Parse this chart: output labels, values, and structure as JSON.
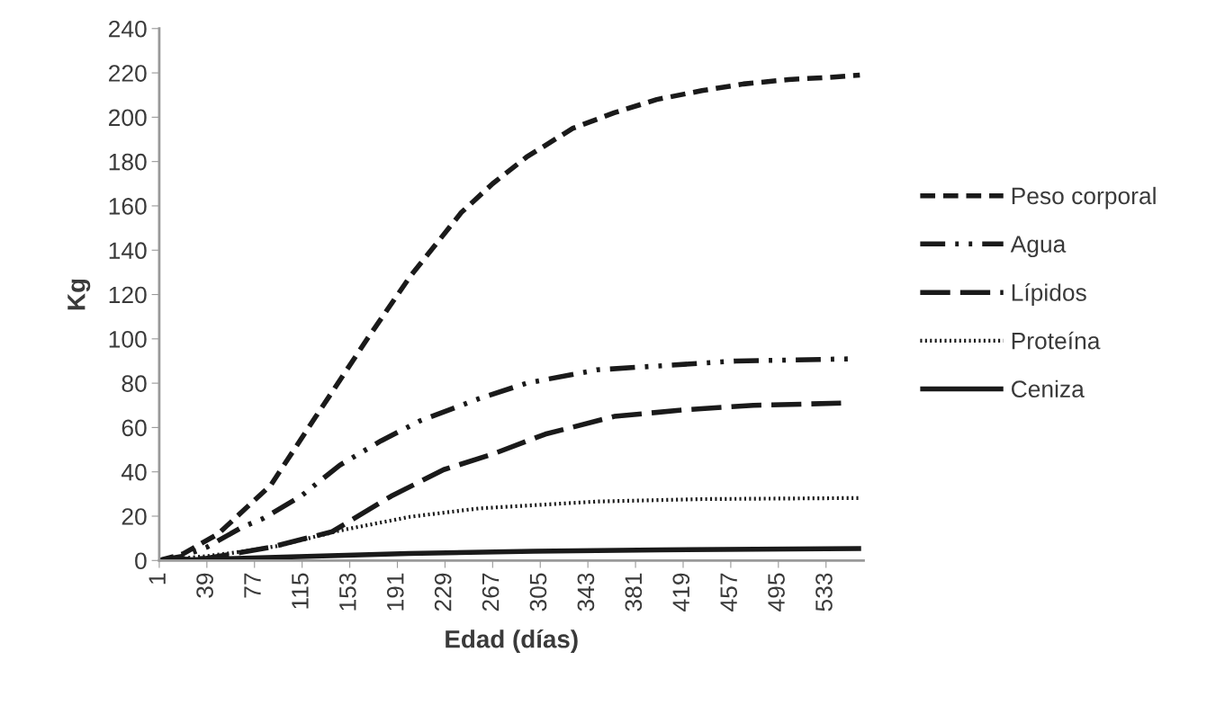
{
  "chart_data": {
    "type": "line",
    "xlabel": "Edad (días)",
    "ylabel": "Kg",
    "xlim": [
      1,
      563
    ],
    "xticks": [
      1,
      39,
      77,
      115,
      153,
      191,
      229,
      267,
      305,
      343,
      381,
      419,
      457,
      495,
      533
    ],
    "ylim": [
      0,
      240
    ],
    "yticks": [
      0,
      20,
      40,
      60,
      80,
      100,
      120,
      140,
      160,
      180,
      200,
      220,
      240
    ],
    "grid": false,
    "legend": "right",
    "marker": "none",
    "series": [
      {
        "name": "Peso corporal",
        "color": "#1a1a1a",
        "line_style": "dashed",
        "x": [
          1,
          20,
          48,
          90,
          126,
          167,
          201,
          242,
          267,
          294,
          331,
          364,
          398,
          434,
          467,
          503,
          536,
          560
        ],
        "values": [
          0,
          3,
          12,
          34,
          65,
          100,
          128,
          157,
          170,
          182,
          195,
          202,
          208,
          212,
          215,
          217,
          218,
          219
        ]
      },
      {
        "name": "Agua",
        "color": "#1a1a1a",
        "line_style": "dashdot",
        "x": [
          1,
          20,
          39,
          67,
          84,
          114,
          145,
          178,
          209,
          256,
          294,
          350,
          405,
          461,
          554
        ],
        "values": [
          0,
          2,
          6,
          15,
          19,
          29,
          43,
          54,
          63,
          73,
          80,
          86,
          88,
          90,
          91
        ]
      },
      {
        "name": "Lípidos",
        "color": "#1a1a1a",
        "line_style": "longdash",
        "x": [
          1,
          39,
          60,
          90,
          139,
          186,
          228,
          267,
          309,
          364,
          420,
          475,
          545
        ],
        "values": [
          0,
          1,
          3,
          6,
          13,
          29,
          41,
          48,
          57,
          65,
          68,
          70,
          71
        ]
      },
      {
        "name": "Proteína",
        "color": "#1a1a1a",
        "line_style": "dotted",
        "x": [
          1,
          39,
          67,
          95,
          145,
          201,
          256,
          350,
          434,
          561
        ],
        "values": [
          0,
          2,
          4,
          6.5,
          13.5,
          19.7,
          23.5,
          26.6,
          27.7,
          28.2
        ]
      },
      {
        "name": "Ceniza",
        "color": "#1a1a1a",
        "line_style": "solid",
        "x": [
          1,
          100,
          200,
          300,
          400,
          561
        ],
        "values": [
          0,
          1.5,
          3.2,
          4.2,
          4.8,
          5.4
        ]
      }
    ]
  }
}
